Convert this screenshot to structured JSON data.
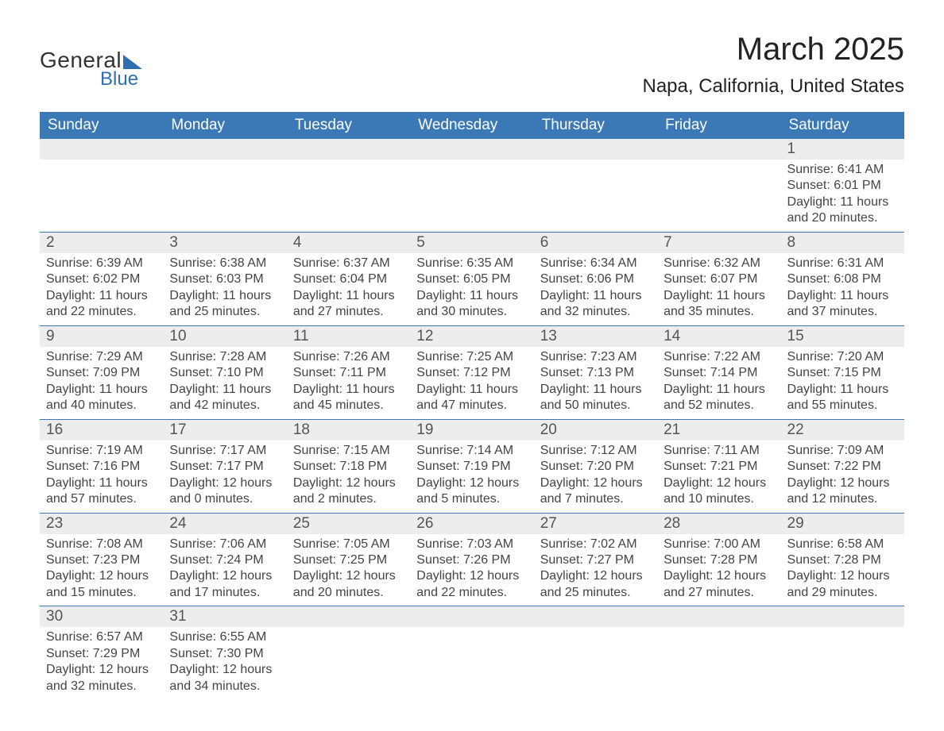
{
  "brand": {
    "general": "General",
    "blue": "Blue"
  },
  "title": "March 2025",
  "location": "Napa, California, United States",
  "colors": {
    "header_bg": "#3a78b6",
    "row_border": "#3a78b6",
    "daynum_bg": "#ededed",
    "text": "#333333",
    "brand_blue": "#2f6eb0"
  },
  "day_headers": [
    "Sunday",
    "Monday",
    "Tuesday",
    "Wednesday",
    "Thursday",
    "Friday",
    "Saturday"
  ],
  "weeks": [
    [
      null,
      null,
      null,
      null,
      null,
      null,
      {
        "n": "1",
        "sr": "Sunrise: 6:41 AM",
        "ss": "Sunset: 6:01 PM",
        "dl1": "Daylight: 11 hours",
        "dl2": "and 20 minutes."
      }
    ],
    [
      {
        "n": "2",
        "sr": "Sunrise: 6:39 AM",
        "ss": "Sunset: 6:02 PM",
        "dl1": "Daylight: 11 hours",
        "dl2": "and 22 minutes."
      },
      {
        "n": "3",
        "sr": "Sunrise: 6:38 AM",
        "ss": "Sunset: 6:03 PM",
        "dl1": "Daylight: 11 hours",
        "dl2": "and 25 minutes."
      },
      {
        "n": "4",
        "sr": "Sunrise: 6:37 AM",
        "ss": "Sunset: 6:04 PM",
        "dl1": "Daylight: 11 hours",
        "dl2": "and 27 minutes."
      },
      {
        "n": "5",
        "sr": "Sunrise: 6:35 AM",
        "ss": "Sunset: 6:05 PM",
        "dl1": "Daylight: 11 hours",
        "dl2": "and 30 minutes."
      },
      {
        "n": "6",
        "sr": "Sunrise: 6:34 AM",
        "ss": "Sunset: 6:06 PM",
        "dl1": "Daylight: 11 hours",
        "dl2": "and 32 minutes."
      },
      {
        "n": "7",
        "sr": "Sunrise: 6:32 AM",
        "ss": "Sunset: 6:07 PM",
        "dl1": "Daylight: 11 hours",
        "dl2": "and 35 minutes."
      },
      {
        "n": "8",
        "sr": "Sunrise: 6:31 AM",
        "ss": "Sunset: 6:08 PM",
        "dl1": "Daylight: 11 hours",
        "dl2": "and 37 minutes."
      }
    ],
    [
      {
        "n": "9",
        "sr": "Sunrise: 7:29 AM",
        "ss": "Sunset: 7:09 PM",
        "dl1": "Daylight: 11 hours",
        "dl2": "and 40 minutes."
      },
      {
        "n": "10",
        "sr": "Sunrise: 7:28 AM",
        "ss": "Sunset: 7:10 PM",
        "dl1": "Daylight: 11 hours",
        "dl2": "and 42 minutes."
      },
      {
        "n": "11",
        "sr": "Sunrise: 7:26 AM",
        "ss": "Sunset: 7:11 PM",
        "dl1": "Daylight: 11 hours",
        "dl2": "and 45 minutes."
      },
      {
        "n": "12",
        "sr": "Sunrise: 7:25 AM",
        "ss": "Sunset: 7:12 PM",
        "dl1": "Daylight: 11 hours",
        "dl2": "and 47 minutes."
      },
      {
        "n": "13",
        "sr": "Sunrise: 7:23 AM",
        "ss": "Sunset: 7:13 PM",
        "dl1": "Daylight: 11 hours",
        "dl2": "and 50 minutes."
      },
      {
        "n": "14",
        "sr": "Sunrise: 7:22 AM",
        "ss": "Sunset: 7:14 PM",
        "dl1": "Daylight: 11 hours",
        "dl2": "and 52 minutes."
      },
      {
        "n": "15",
        "sr": "Sunrise: 7:20 AM",
        "ss": "Sunset: 7:15 PM",
        "dl1": "Daylight: 11 hours",
        "dl2": "and 55 minutes."
      }
    ],
    [
      {
        "n": "16",
        "sr": "Sunrise: 7:19 AM",
        "ss": "Sunset: 7:16 PM",
        "dl1": "Daylight: 11 hours",
        "dl2": "and 57 minutes."
      },
      {
        "n": "17",
        "sr": "Sunrise: 7:17 AM",
        "ss": "Sunset: 7:17 PM",
        "dl1": "Daylight: 12 hours",
        "dl2": "and 0 minutes."
      },
      {
        "n": "18",
        "sr": "Sunrise: 7:15 AM",
        "ss": "Sunset: 7:18 PM",
        "dl1": "Daylight: 12 hours",
        "dl2": "and 2 minutes."
      },
      {
        "n": "19",
        "sr": "Sunrise: 7:14 AM",
        "ss": "Sunset: 7:19 PM",
        "dl1": "Daylight: 12 hours",
        "dl2": "and 5 minutes."
      },
      {
        "n": "20",
        "sr": "Sunrise: 7:12 AM",
        "ss": "Sunset: 7:20 PM",
        "dl1": "Daylight: 12 hours",
        "dl2": "and 7 minutes."
      },
      {
        "n": "21",
        "sr": "Sunrise: 7:11 AM",
        "ss": "Sunset: 7:21 PM",
        "dl1": "Daylight: 12 hours",
        "dl2": "and 10 minutes."
      },
      {
        "n": "22",
        "sr": "Sunrise: 7:09 AM",
        "ss": "Sunset: 7:22 PM",
        "dl1": "Daylight: 12 hours",
        "dl2": "and 12 minutes."
      }
    ],
    [
      {
        "n": "23",
        "sr": "Sunrise: 7:08 AM",
        "ss": "Sunset: 7:23 PM",
        "dl1": "Daylight: 12 hours",
        "dl2": "and 15 minutes."
      },
      {
        "n": "24",
        "sr": "Sunrise: 7:06 AM",
        "ss": "Sunset: 7:24 PM",
        "dl1": "Daylight: 12 hours",
        "dl2": "and 17 minutes."
      },
      {
        "n": "25",
        "sr": "Sunrise: 7:05 AM",
        "ss": "Sunset: 7:25 PM",
        "dl1": "Daylight: 12 hours",
        "dl2": "and 20 minutes."
      },
      {
        "n": "26",
        "sr": "Sunrise: 7:03 AM",
        "ss": "Sunset: 7:26 PM",
        "dl1": "Daylight: 12 hours",
        "dl2": "and 22 minutes."
      },
      {
        "n": "27",
        "sr": "Sunrise: 7:02 AM",
        "ss": "Sunset: 7:27 PM",
        "dl1": "Daylight: 12 hours",
        "dl2": "and 25 minutes."
      },
      {
        "n": "28",
        "sr": "Sunrise: 7:00 AM",
        "ss": "Sunset: 7:28 PM",
        "dl1": "Daylight: 12 hours",
        "dl2": "and 27 minutes."
      },
      {
        "n": "29",
        "sr": "Sunrise: 6:58 AM",
        "ss": "Sunset: 7:28 PM",
        "dl1": "Daylight: 12 hours",
        "dl2": "and 29 minutes."
      }
    ],
    [
      {
        "n": "30",
        "sr": "Sunrise: 6:57 AM",
        "ss": "Sunset: 7:29 PM",
        "dl1": "Daylight: 12 hours",
        "dl2": "and 32 minutes."
      },
      {
        "n": "31",
        "sr": "Sunrise: 6:55 AM",
        "ss": "Sunset: 7:30 PM",
        "dl1": "Daylight: 12 hours",
        "dl2": "and 34 minutes."
      },
      null,
      null,
      null,
      null,
      null
    ]
  ]
}
